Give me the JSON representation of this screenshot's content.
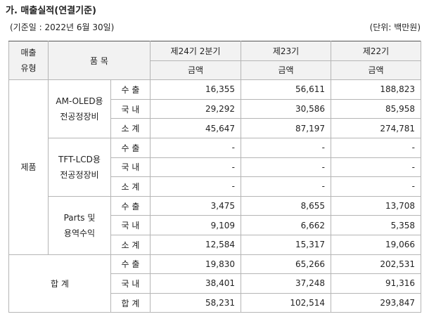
{
  "header": {
    "title": "가. 매출실적(연결기준)",
    "date": "(기준일 : 2022년 6월 30일)",
    "unit": "(단위: 백만원)"
  },
  "table": {
    "columns": {
      "type": [
        "매출",
        "유형"
      ],
      "item": "품 목",
      "periods": [
        "제24기 2분기",
        "제23기",
        "제22기"
      ],
      "amount": [
        "금액",
        "금액",
        "금액"
      ]
    },
    "groups": [
      {
        "label": "제품",
        "subgroups": [
          {
            "label": [
              "AM-OLED용",
              "전공정장비"
            ],
            "rows": [
              {
                "name": "수 출",
                "values": [
                  "16,355",
                  "56,611",
                  "188,823"
                ]
              },
              {
                "name": "국 내",
                "values": [
                  "29,292",
                  "30,586",
                  "85,958"
                ]
              },
              {
                "name": "소 계",
                "values": [
                  "45,647",
                  "87,197",
                  "274,781"
                ]
              }
            ]
          },
          {
            "label": [
              "TFT-LCD용",
              "전공정장비"
            ],
            "rows": [
              {
                "name": "수 출",
                "values": [
                  "-",
                  "-",
                  "-"
                ]
              },
              {
                "name": "국 내",
                "values": [
                  "-",
                  "-",
                  "-"
                ]
              },
              {
                "name": "소 계",
                "values": [
                  "-",
                  "-",
                  "-"
                ]
              }
            ]
          },
          {
            "label": [
              "Parts 및",
              "용역수익"
            ],
            "rows": [
              {
                "name": "수 출",
                "values": [
                  "3,475",
                  "8,655",
                  "13,708"
                ]
              },
              {
                "name": "국 내",
                "values": [
                  "9,109",
                  "6,662",
                  "5,358"
                ]
              },
              {
                "name": "소 계",
                "values": [
                  "12,584",
                  "15,317",
                  "19,066"
                ]
              }
            ]
          }
        ]
      },
      {
        "label": "합 계",
        "rows": [
          {
            "name": "수 출",
            "values": [
              "19,830",
              "65,266",
              "202,531"
            ]
          },
          {
            "name": "국 내",
            "values": [
              "38,401",
              "37,248",
              "91,316"
            ]
          },
          {
            "name": "합 계",
            "values": [
              "58,231",
              "102,514",
              "293,847"
            ]
          }
        ]
      }
    ]
  }
}
